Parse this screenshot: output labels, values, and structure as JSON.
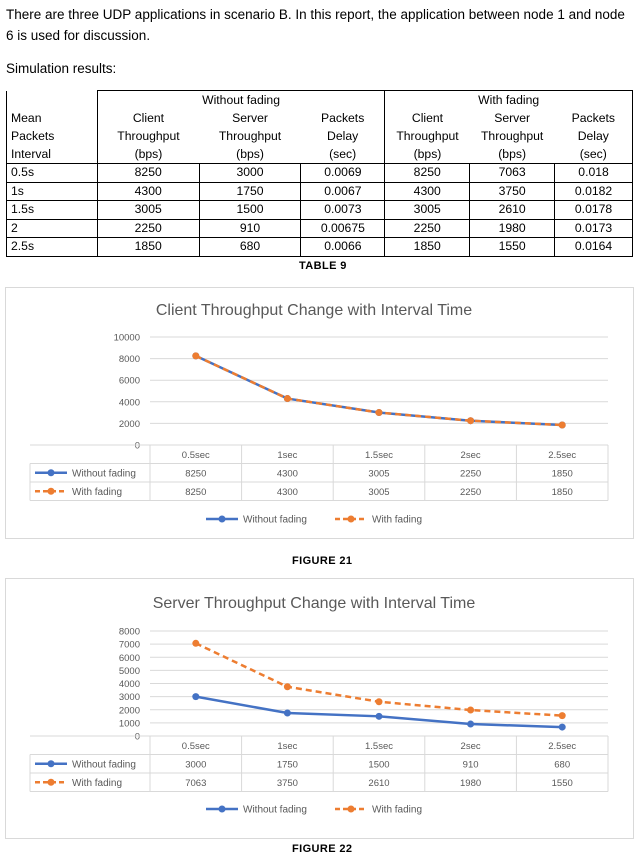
{
  "intro_text": "There are three UDP applications in scenario B. In this report, the application between node 1 and node 6 is used for discussion.",
  "sim_results_label": "Simulation results:",
  "table": {
    "group_without": "Without fading",
    "group_with": "With fading",
    "col_interval": [
      "Mean",
      "Packets",
      "Interval"
    ],
    "col_client": [
      "Client",
      "Throughput",
      "(bps)"
    ],
    "col_server": [
      "Server",
      "Throughput",
      "(bps)"
    ],
    "col_delay": [
      "Packets",
      "Delay",
      "(sec)"
    ],
    "rows": [
      {
        "interval": "0.5s",
        "wo_client": "8250",
        "wo_server": "3000",
        "wo_delay": "0.0069",
        "w_client": "8250",
        "w_server": "7063",
        "w_delay": "0.018"
      },
      {
        "interval": "1s",
        "wo_client": "4300",
        "wo_server": "1750",
        "wo_delay": "0.0067",
        "w_client": "4300",
        "w_server": "3750",
        "w_delay": "0.0182"
      },
      {
        "interval": "1.5s",
        "wo_client": "3005",
        "wo_server": "1500",
        "wo_delay": "0.0073",
        "w_client": "3005",
        "w_server": "2610",
        "w_delay": "0.0178"
      },
      {
        "interval": "2",
        "wo_client": "2250",
        "wo_server": "910",
        "wo_delay": "0.00675",
        "w_client": "2250",
        "w_server": "1980",
        "w_delay": "0.0173"
      },
      {
        "interval": "2.5s",
        "wo_client": "1850",
        "wo_server": "680",
        "wo_delay": "0.0066",
        "w_client": "1850",
        "w_server": "1550",
        "w_delay": "0.0164"
      }
    ]
  },
  "table_caption": "TABLE 9",
  "figure21_caption": "FIGURE 21",
  "figure22_caption": "FIGURE 22",
  "colors": {
    "without_fading": "#4472c4",
    "with_fading": "#ed7d31",
    "grid": "#d9d9d9"
  },
  "chart_data": [
    {
      "type": "line",
      "title": "Client Throughput Change with Interval Time",
      "categories": [
        "0.5sec",
        "1sec",
        "1.5sec",
        "2sec",
        "2.5sec"
      ],
      "series": [
        {
          "name": "Without fading",
          "values": [
            8250,
            4300,
            3005,
            2250,
            1850
          ],
          "style": "solid"
        },
        {
          "name": "With fading",
          "values": [
            8250,
            4300,
            3005,
            2250,
            1850
          ],
          "style": "dashed"
        }
      ],
      "yticks": [
        0,
        2000,
        4000,
        6000,
        8000,
        10000
      ],
      "ylim": [
        0,
        10000
      ],
      "grid": true,
      "legend": "bottom",
      "data_table": true
    },
    {
      "type": "line",
      "title": "Server Throughput Change with Interval Time",
      "categories": [
        "0.5sec",
        "1sec",
        "1.5sec",
        "2sec",
        "2.5sec"
      ],
      "series": [
        {
          "name": "Without fading",
          "values": [
            3000,
            1750,
            1500,
            910,
            680
          ],
          "style": "solid"
        },
        {
          "name": "With fading",
          "values": [
            7063,
            3750,
            2610,
            1980,
            1550
          ],
          "style": "dashed"
        }
      ],
      "yticks": [
        0,
        1000,
        2000,
        3000,
        4000,
        5000,
        6000,
        7000,
        8000
      ],
      "ylim": [
        0,
        8000
      ],
      "grid": true,
      "legend": "bottom",
      "data_table": true
    }
  ]
}
